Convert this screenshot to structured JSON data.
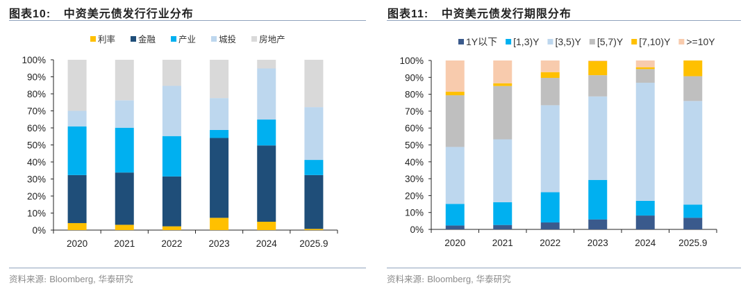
{
  "panels": {
    "left": {
      "title_prefix": "图表",
      "title_num": "10:",
      "title_text": "中资美元债发行行业分布",
      "source_prefix": "资料来源:",
      "source_latin": "Bloomberg,",
      "source_suffix": "华泰研究"
    },
    "right": {
      "title_prefix": "图表",
      "title_num": "11:",
      "title_text": "中资美元债发行期限分布",
      "source_prefix": "资料来源:",
      "source_latin": "Bloomberg,",
      "source_suffix": "华泰研究"
    }
  },
  "chart_data": [
    {
      "type": "bar",
      "stacked": true,
      "title": "图表10: 中资美元债发行行业分布",
      "xlabel": "",
      "ylabel": "",
      "ylim": [
        0,
        100
      ],
      "yticks": [
        "0%",
        "10%",
        "20%",
        "30%",
        "40%",
        "50%",
        "60%",
        "70%",
        "80%",
        "90%",
        "100%"
      ],
      "categories": [
        "2020",
        "2021",
        "2022",
        "2023",
        "2024",
        "2025.9"
      ],
      "legend_position": "top-center",
      "grid": false,
      "series": [
        {
          "name": "利率",
          "color": "#ffc000",
          "values": [
            4.1,
            3.1,
            2.2,
            7.2,
            4.9,
            0.7
          ]
        },
        {
          "name": "金融",
          "color": "#1f4e79",
          "values": [
            28.2,
            30.7,
            29.3,
            46.9,
            44.8,
            31.6
          ]
        },
        {
          "name": "产业",
          "color": "#00b0f0",
          "values": [
            28.6,
            26.3,
            23.7,
            4.7,
            15.2,
            8.9
          ]
        },
        {
          "name": "城投",
          "color": "#bdd7ee",
          "values": [
            9.1,
            16.1,
            29.5,
            18.7,
            30.0,
            31.0
          ]
        },
        {
          "name": "房地产",
          "color": "#d9d9d9",
          "values": [
            30.0,
            23.8,
            15.3,
            22.5,
            5.1,
            27.8
          ]
        }
      ]
    },
    {
      "type": "bar",
      "stacked": true,
      "title": "图表11: 中资美元债发行期限分布",
      "xlabel": "",
      "ylabel": "",
      "ylim": [
        0,
        100
      ],
      "yticks": [
        "0%",
        "10%",
        "20%",
        "30%",
        "40%",
        "50%",
        "60%",
        "70%",
        "80%",
        "90%",
        "100%"
      ],
      "categories": [
        "2020",
        "2021",
        "2022",
        "2023",
        "2024",
        "2025.9"
      ],
      "legend_position": "top-center",
      "grid": false,
      "series": [
        {
          "name": "1Y以下",
          "color": "#3a5a8c",
          "values": [
            2.3,
            2.6,
            4.1,
            5.9,
            8.2,
            6.9
          ]
        },
        {
          "name": "[1,3)Y",
          "color": "#00b0f0",
          "values": [
            12.8,
            13.5,
            17.9,
            23.4,
            8.7,
            7.8
          ]
        },
        {
          "name": "[3,5)Y",
          "color": "#bdd7ee",
          "values": [
            33.7,
            37.2,
            51.5,
            49.4,
            69.9,
            61.3
          ]
        },
        {
          "name": "[5,7)Y",
          "color": "#bfbfbf",
          "values": [
            30.6,
            31.6,
            16.2,
            12.6,
            8.1,
            14.7
          ]
        },
        {
          "name": "[7,10)Y",
          "color": "#ffc000",
          "values": [
            2.1,
            1.6,
            3.4,
            8.3,
            1.1,
            9.3
          ]
        },
        {
          "name": ">=10Y",
          "color": "#f8cbad",
          "values": [
            18.5,
            13.5,
            6.9,
            0.4,
            4.0,
            0.0
          ]
        }
      ]
    }
  ]
}
